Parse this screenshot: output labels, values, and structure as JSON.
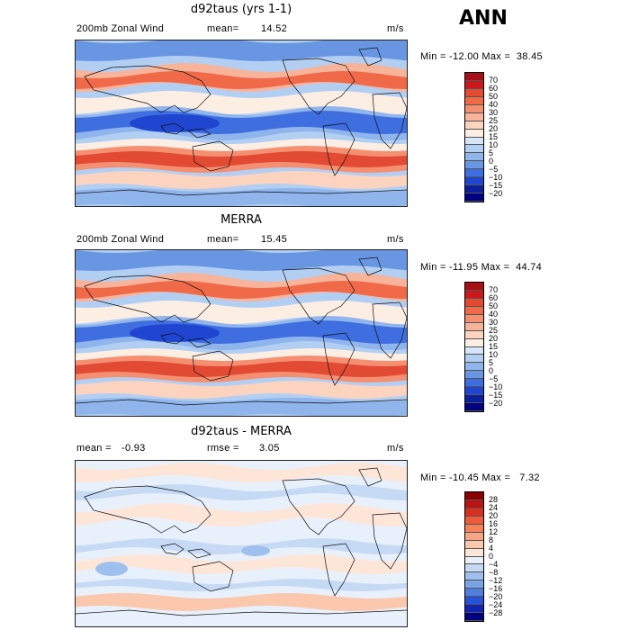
{
  "season": "ANN",
  "panels": [
    {
      "title": "d92taus (yrs 1-1)",
      "left_label": "200mb Zonal Wind",
      "stat_label": "mean=",
      "stat_value": "14.52",
      "units": "m/s",
      "minmax": "Min = -12.00 Max =  38.45",
      "colorbar_levels": [
        "70",
        "60",
        "50",
        "40",
        "30",
        "25",
        "20",
        "15",
        "10",
        "5",
        "0",
        "−5",
        "−10",
        "−15",
        "−20"
      ],
      "colorbar_colors": [
        "#a50f15",
        "#cb181d",
        "#e34a33",
        "#f06a4a",
        "#f58f72",
        "#f8b49a",
        "#fbd3bf",
        "#fdeee4",
        "#d6e6f8",
        "#b2cff3",
        "#8fb5ec",
        "#6996e3",
        "#3f6ee0",
        "#1f45d1",
        "#0b1f9a",
        "#000080"
      ],
      "field": "full"
    },
    {
      "title": "MERRA",
      "left_label": "200mb Zonal Wind",
      "stat_label": "mean=",
      "stat_value": "15.45",
      "units": "m/s",
      "minmax": "Min = -11.95 Max =  44.74",
      "colorbar_levels": [
        "70",
        "60",
        "50",
        "40",
        "30",
        "25",
        "20",
        "15",
        "10",
        "5",
        "0",
        "−5",
        "−10",
        "−15",
        "−20"
      ],
      "colorbar_colors": [
        "#a50f15",
        "#cb181d",
        "#e34a33",
        "#f06a4a",
        "#f58f72",
        "#f8b49a",
        "#fbd3bf",
        "#fdeee4",
        "#d6e6f8",
        "#b2cff3",
        "#8fb5ec",
        "#6996e3",
        "#3f6ee0",
        "#1f45d1",
        "#0b1f9a",
        "#000080"
      ],
      "field": "full"
    },
    {
      "title": "d92taus - MERRA",
      "left_label": "mean =",
      "left_value": "-0.93",
      "stat_label": "rmse =",
      "stat_value": "3.05",
      "units": "m/s",
      "minmax": "Min = -10.45 Max =   7.32",
      "colorbar_levels": [
        "28",
        "24",
        "20",
        "16",
        "12",
        "8",
        "4",
        "0",
        "−4",
        "−8",
        "−12",
        "−16",
        "−20",
        "−24",
        "−28"
      ],
      "colorbar_colors": [
        "#8b0000",
        "#b81414",
        "#d7301f",
        "#ef5a3c",
        "#f4805c",
        "#f8a585",
        "#fbc8ae",
        "#fde6d8",
        "#e8f0fb",
        "#c6daf5",
        "#9fc0ee",
        "#7aa3e6",
        "#4f7de0",
        "#2852d6",
        "#1024b0",
        "#000080"
      ],
      "field": "diff"
    }
  ]
}
